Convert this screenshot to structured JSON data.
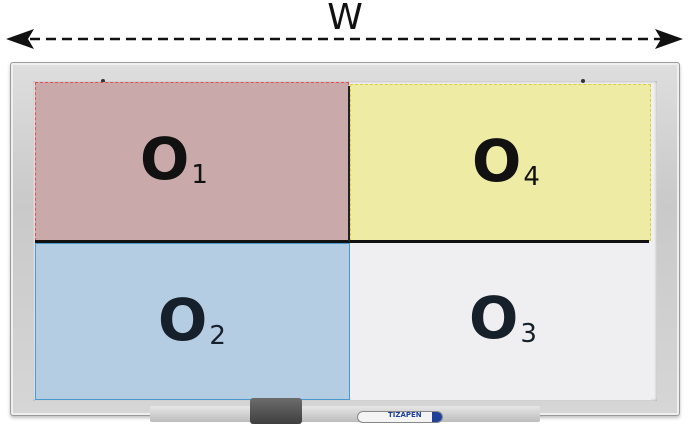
{
  "width_arrow": {
    "label": "W"
  },
  "regions": [
    {
      "id": "o1",
      "letter": "O",
      "subscript": "1",
      "color": "#c9a9a9"
    },
    {
      "id": "o2",
      "letter": "O",
      "subscript": "2",
      "color": "#b4cde3"
    },
    {
      "id": "o3",
      "letter": "O",
      "subscript": "3",
      "color": "#efeef0"
    },
    {
      "id": "o4",
      "letter": "O",
      "subscript": "4",
      "color": "#eeeca4"
    }
  ],
  "tray": {
    "marker_brand": "TIZAPEN"
  }
}
